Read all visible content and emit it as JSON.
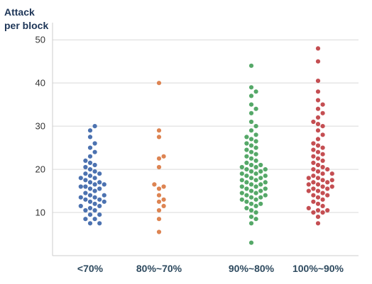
{
  "chart_data": {
    "type": "scatter",
    "style": "swarm",
    "ylabel_lines": [
      "Attack",
      "per block"
    ],
    "ylim": [
      0,
      52
    ],
    "yticks": [
      10,
      20,
      30,
      40,
      50
    ],
    "grid": true,
    "categories": [
      "<70%",
      "80%~70%",
      "90%~80%",
      "100%~90%"
    ],
    "colors": [
      "#4c72b0",
      "#dd8452",
      "#55a868",
      "#c44e52"
    ],
    "series": [
      {
        "values": [
          7.5,
          7.5,
          8.5,
          8.5,
          9.5,
          9.5,
          10.5,
          10.5,
          11,
          11.5,
          11.5,
          12,
          12.5,
          12.5,
          13,
          13,
          13.5,
          13.5,
          14,
          14,
          14.5,
          15,
          15.5,
          15.5,
          16,
          16,
          16.5,
          16.5,
          17,
          17,
          17.5,
          18,
          18,
          18.5,
          19,
          19,
          19.5,
          20,
          20.5,
          21,
          21.5,
          22,
          23,
          24,
          25,
          26,
          27.5,
          29,
          30
        ]
      },
      {
        "values": [
          5.5,
          8.5,
          10.5,
          11.5,
          12.5,
          13,
          14,
          15.5,
          16,
          16.5,
          20.5,
          22.5,
          23,
          27.5,
          29,
          40
        ]
      },
      {
        "values": [
          3,
          7.5,
          8.5,
          9,
          10,
          10.5,
          11,
          11.5,
          12,
          12,
          12.5,
          13,
          13,
          13.5,
          13.5,
          14,
          14,
          14.5,
          14.5,
          15,
          15,
          15.5,
          15.5,
          16,
          16,
          16.5,
          16.5,
          17,
          17,
          17.5,
          17.5,
          18,
          18,
          18.5,
          18.5,
          19,
          19,
          19.5,
          19.5,
          20,
          20,
          20.5,
          20.5,
          21,
          21,
          21.5,
          22,
          22.5,
          23,
          23.5,
          24,
          24.5,
          25,
          25.5,
          26,
          26.5,
          27,
          27.5,
          28,
          29,
          30,
          31,
          33,
          34,
          35,
          37,
          38,
          39,
          44
        ]
      },
      {
        "values": [
          7.5,
          9,
          10,
          10,
          10.5,
          10.5,
          11,
          11.5,
          12,
          12.5,
          13,
          13.5,
          14,
          14,
          14.5,
          15,
          15,
          15.5,
          15.5,
          16,
          16,
          16.5,
          16.5,
          17,
          17,
          17.5,
          17.5,
          18,
          18,
          18.5,
          19,
          19,
          19.5,
          20,
          20,
          20.5,
          21,
          21.5,
          22,
          22.5,
          23,
          23.5,
          24,
          24.5,
          25,
          25.5,
          26,
          27,
          28,
          29,
          30,
          30.5,
          31,
          32,
          33,
          34,
          35,
          36,
          38,
          40.5,
          45,
          48
        ]
      }
    ]
  }
}
